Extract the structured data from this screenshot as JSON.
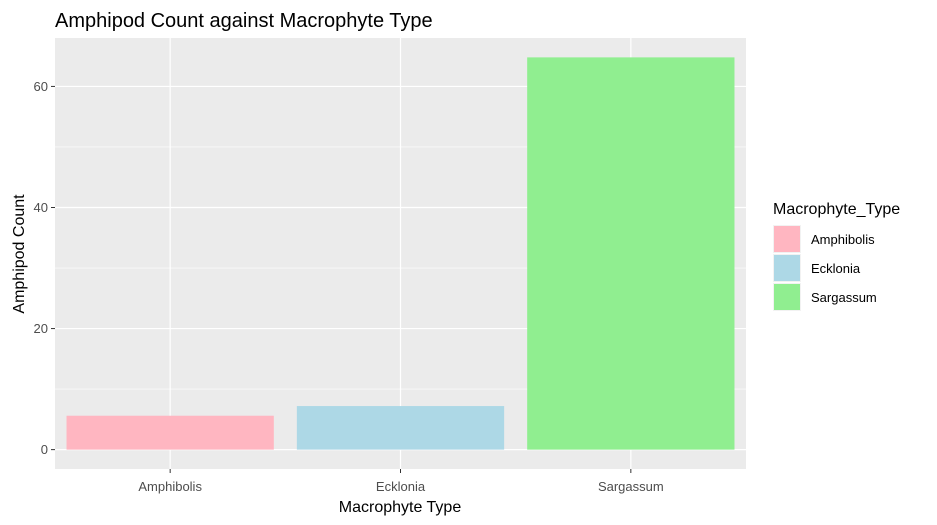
{
  "chart_data": {
    "type": "bar",
    "title": "Amphipod Count against Macrophyte Type",
    "xlabel": "Macrophyte Type",
    "ylabel": "Amphipod Count",
    "categories": [
      "Amphibolis",
      "Ecklonia",
      "Sargassum"
    ],
    "values": [
      5.6,
      7.2,
      64.8
    ],
    "colors": [
      "#ffb6c1",
      "#add8e6",
      "#90ee90"
    ],
    "ylim": [
      -3.2,
      68.0
    ],
    "yticks": [
      0,
      20,
      40,
      60
    ],
    "yticks_minor": [
      10,
      30,
      50
    ],
    "grid": true,
    "panel_background": "#ebebeb",
    "legend": {
      "title": "Macrophyte_Type",
      "position": "right",
      "entries": [
        "Amphibolis",
        "Ecklonia",
        "Sargassum"
      ]
    }
  }
}
